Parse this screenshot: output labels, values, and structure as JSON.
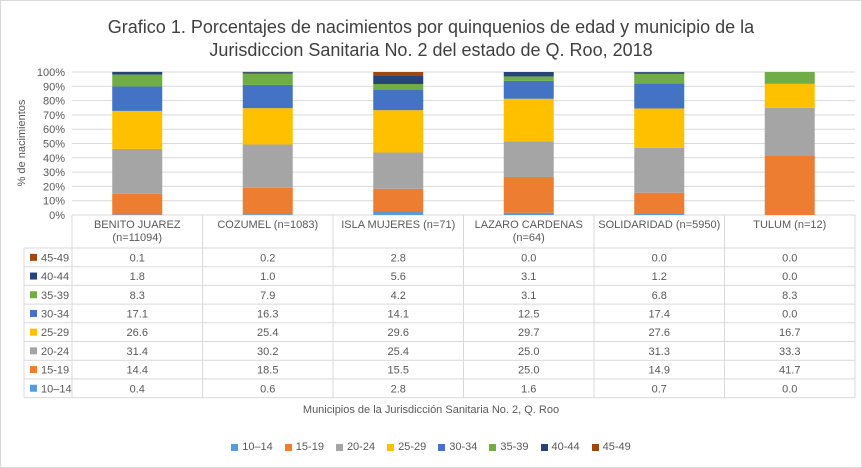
{
  "chart_data": {
    "type": "bar",
    "stacked": true,
    "title_line1": "Grafico 1. Porcentajes de nacimientos por quinquenios de edad y municipio de la",
    "title_line2": "Jurisdiccion Sanitaria No. 2 del estado de Q. Roo, 2018",
    "xlabel": "Municipios de la Jurisdicción Sanitaria No. 2, Q. Roo",
    "ylabel": "% de nacimientos",
    "ylim": [
      0,
      100
    ],
    "y_ticks": [
      "0%",
      "10%",
      "20%",
      "30%",
      "40%",
      "50%",
      "60%",
      "70%",
      "80%",
      "90%",
      "100%"
    ],
    "grid": true,
    "legend_position": "bottom",
    "categories": [
      [
        "BENITO JUAREZ",
        "(n=11094)"
      ],
      [
        "COZUMEL (n=1083)"
      ],
      [
        "ISLA MUJERES (n=71)"
      ],
      [
        "LAZARO CARDENAS",
        "(n=64)"
      ],
      [
        "SOLIDARIDAD (n=5950)"
      ],
      [
        "TULUM (n=12)"
      ]
    ],
    "series": [
      {
        "name": "10–14",
        "color": "#5b9bd5",
        "values": [
          0.4,
          0.6,
          2.8,
          1.6,
          0.7,
          0.0
        ]
      },
      {
        "name": "15-19",
        "color": "#ed7d31",
        "values": [
          14.4,
          18.5,
          15.5,
          25.0,
          14.9,
          41.7
        ]
      },
      {
        "name": "20-24",
        "color": "#a5a5a5",
        "values": [
          31.4,
          30.2,
          25.4,
          25.0,
          31.3,
          33.3
        ]
      },
      {
        "name": "25-29",
        "color": "#ffc000",
        "values": [
          26.6,
          25.4,
          29.6,
          29.7,
          27.6,
          16.7
        ]
      },
      {
        "name": "30-34",
        "color": "#4472c4",
        "values": [
          17.1,
          16.3,
          14.1,
          12.5,
          17.4,
          0.0
        ]
      },
      {
        "name": "35-39",
        "color": "#70ad47",
        "values": [
          8.3,
          7.9,
          4.2,
          3.1,
          6.8,
          8.3
        ]
      },
      {
        "name": "40-44",
        "color": "#264478",
        "values": [
          1.8,
          1.0,
          5.6,
          3.1,
          1.2,
          0.0
        ]
      },
      {
        "name": "45-49",
        "color": "#9e480e",
        "values": [
          0.1,
          0.2,
          2.8,
          0.0,
          0.0,
          0.0
        ]
      }
    ],
    "table_values": [
      [
        "0.1",
        "0.2",
        "2.8",
        "0.0",
        "0.0",
        "0.0"
      ],
      [
        "1.8",
        "1.0",
        "5.6",
        "3.1",
        "1.2",
        "0.0"
      ],
      [
        "8.3",
        "7.9",
        "4.2",
        "3.1",
        "6.8",
        "8.3"
      ],
      [
        "17.1",
        "16.3",
        "14.1",
        "12.5",
        "17.4",
        "0.0"
      ],
      [
        "26.6",
        "25.4",
        "29.6",
        "29.7",
        "27.6",
        "16.7"
      ],
      [
        "31.4",
        "30.2",
        "25.4",
        "25.0",
        "31.3",
        "33.3"
      ],
      [
        "14.4",
        "18.5",
        "15.5",
        "25.0",
        "14.9",
        "41.7"
      ],
      [
        "0.4",
        "0.6",
        "2.8",
        "1.6",
        "0.7",
        "0.0"
      ]
    ],
    "table_row_labels": [
      "45-49",
      "40-44",
      "35-39",
      "30-34",
      "25-29",
      "20-24",
      "15-19",
      "10–14"
    ]
  }
}
